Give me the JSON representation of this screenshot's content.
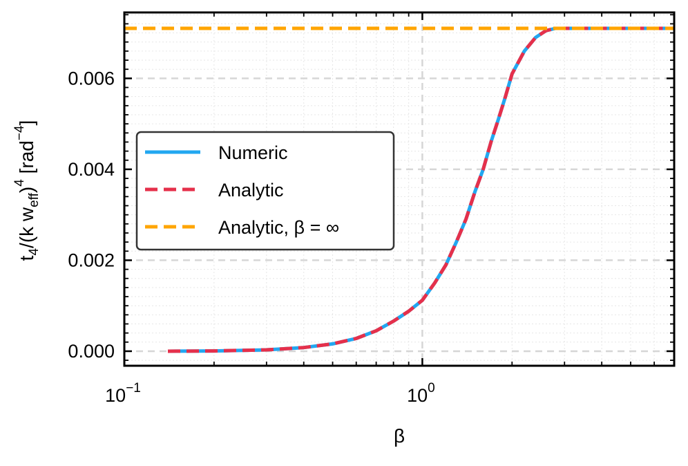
{
  "chart_data": {
    "type": "line",
    "title": "",
    "xlabel": "β",
    "ylabel": {
      "prefix": "t",
      "prefix_sub": "4",
      "mid": "/(k w",
      "mid_sub": "eff",
      "close": ")",
      "close_sup": "4",
      "unit": " [rad",
      "unit_sup": "−4",
      "unit_close": "]"
    },
    "x_scale": "log",
    "xlim": [
      0.1,
      7.0
    ],
    "ylim": [
      -0.00032,
      0.00745
    ],
    "grid": true,
    "legend_position": "center-left",
    "x_ticks": [
      {
        "value": 0.1,
        "base": "10",
        "exp": "−1"
      },
      {
        "value": 1.0,
        "base": "10",
        "exp": "0"
      }
    ],
    "y_ticks": [
      {
        "value": 0.0,
        "label": "0.000"
      },
      {
        "value": 0.002,
        "label": "0.002"
      },
      {
        "value": 0.004,
        "label": "0.004"
      },
      {
        "value": 0.006,
        "label": "0.006"
      }
    ],
    "series": [
      {
        "name": "Numeric",
        "style": "solid",
        "color": "#22a7f0",
        "x": [
          0.14,
          0.2,
          0.3,
          0.4,
          0.5,
          0.6,
          0.7,
          0.8,
          0.9,
          1.0,
          1.1,
          1.2,
          1.3,
          1.4,
          1.5,
          1.6,
          1.7,
          1.8,
          1.9,
          2.0,
          2.2,
          2.4,
          2.6,
          2.8,
          3.0,
          3.5,
          4.0,
          5.0,
          6.0,
          7.0
        ],
        "y": [
          0.0,
          5e-06,
          3e-05,
          8e-05,
          0.00016,
          0.00028,
          0.00045,
          0.00066,
          0.00088,
          0.00112,
          0.0015,
          0.0019,
          0.0024,
          0.0029,
          0.0035,
          0.004,
          0.0046,
          0.0051,
          0.0056,
          0.0061,
          0.0066,
          0.0069,
          0.00705,
          0.0071,
          0.0071,
          0.0071,
          0.0071,
          0.0071,
          0.0071,
          0.0071
        ]
      },
      {
        "name": "Analytic",
        "style": "dashed",
        "color": "#e5304b",
        "x": [
          0.14,
          0.2,
          0.3,
          0.4,
          0.5,
          0.6,
          0.7,
          0.8,
          0.9,
          1.0,
          1.1,
          1.2,
          1.3,
          1.4,
          1.5,
          1.6,
          1.7,
          1.8,
          1.9,
          2.0,
          2.2,
          2.4,
          2.6,
          2.8,
          3.0,
          3.5,
          4.0,
          5.0,
          6.0,
          7.0
        ],
        "y": [
          0.0,
          5e-06,
          3e-05,
          8e-05,
          0.00016,
          0.00028,
          0.00045,
          0.00066,
          0.00088,
          0.00112,
          0.0015,
          0.0019,
          0.0024,
          0.0029,
          0.0035,
          0.004,
          0.0046,
          0.0051,
          0.0056,
          0.0061,
          0.0066,
          0.0069,
          0.00705,
          0.0071,
          0.0071,
          0.0071,
          0.0071,
          0.0071,
          0.0071,
          0.0071
        ]
      },
      {
        "name": "Analytic, β = ∞",
        "style": "dashed",
        "color": "#ffa500",
        "x": [
          0.1,
          7.0
        ],
        "y": [
          0.0071,
          0.0071
        ]
      }
    ]
  }
}
